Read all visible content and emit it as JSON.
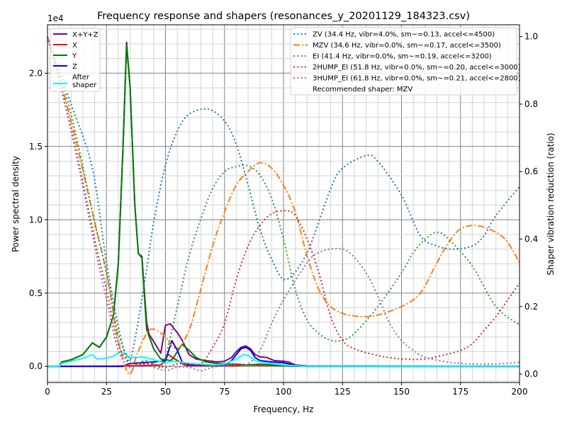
{
  "chart_data": {
    "type": "line",
    "title": "Frequency response and shapers (resonances_y_20201129_184323.csv)",
    "xlabel": "Frequency, Hz",
    "ylabel": "Power spectral density",
    "y2label": "Shaper vibration reduction (ratio)",
    "y_offset_label": "1e4",
    "xlim": [
      0,
      200
    ],
    "ylim": [
      -1100,
      23300
    ],
    "y2lim": [
      -0.025,
      1.035
    ],
    "x_ticks": [
      "0",
      "25",
      "50",
      "75",
      "100",
      "125",
      "150",
      "175",
      "200"
    ],
    "y_ticks": [
      "0.0",
      "0.5",
      "1.0",
      "1.5",
      "2.0"
    ],
    "y2_ticks": [
      "0.0",
      "0.2",
      "0.4",
      "0.6",
      "0.8",
      "1.0"
    ],
    "grid": true,
    "psd_legend_position": "top-left",
    "shaper_legend_position": "top-right",
    "psd_series": [
      {
        "name": "X+Y+Z",
        "color": "#800080",
        "x": [
          0,
          5,
          6,
          10,
          15,
          19,
          22,
          25,
          28,
          30,
          32,
          33.5,
          35,
          37,
          38.5,
          40,
          42,
          43,
          45,
          48,
          50,
          52,
          55,
          57,
          60,
          63,
          67,
          72,
          75,
          78,
          80,
          82,
          84,
          86,
          88,
          90,
          93,
          96,
          100,
          102,
          105,
          110,
          200
        ],
        "y": [
          0,
          0,
          300,
          450,
          800,
          1600,
          1300,
          2000,
          3500,
          7000,
          15000,
          22100,
          19000,
          11000,
          7700,
          7500,
          3000,
          2200,
          1700,
          900,
          2800,
          2900,
          2300,
          1800,
          800,
          500,
          400,
          300,
          350,
          600,
          1000,
          1300,
          1400,
          1200,
          800,
          650,
          600,
          400,
          350,
          300,
          100,
          30,
          0
        ]
      },
      {
        "name": "X",
        "color": "#ff0000",
        "x": [
          0,
          30,
          35,
          40,
          45,
          48,
          50,
          51,
          53,
          55,
          58,
          60,
          70,
          80,
          85,
          90,
          100,
          105,
          200
        ],
        "y": [
          0,
          20,
          50,
          50,
          80,
          100,
          400,
          830,
          600,
          400,
          100,
          50,
          40,
          60,
          100,
          80,
          50,
          10,
          0
        ]
      },
      {
        "name": "Y",
        "color": "#008000",
        "x": [
          0,
          5,
          6,
          10,
          15,
          19,
          22,
          25,
          28,
          30,
          32,
          33.5,
          35,
          37,
          38.5,
          40,
          42,
          45,
          48,
          50,
          52,
          53,
          55,
          57,
          60,
          63,
          67,
          72,
          80,
          85,
          90,
          95,
          100,
          110,
          200
        ],
        "y": [
          0,
          0,
          300,
          450,
          800,
          1600,
          1300,
          2000,
          3500,
          7000,
          15000,
          21900,
          19000,
          11000,
          7700,
          7400,
          2500,
          1200,
          500,
          450,
          400,
          500,
          1000,
          1500,
          1100,
          600,
          300,
          200,
          150,
          100,
          150,
          100,
          50,
          0,
          0
        ]
      },
      {
        "name": "Z",
        "color": "#0000ff",
        "x": [
          0,
          32,
          33,
          35,
          40,
          45,
          48,
          50,
          52.7,
          55,
          57,
          60,
          75,
          78,
          82,
          84,
          86,
          88,
          90,
          95,
          100,
          105,
          110,
          200
        ],
        "y": [
          0,
          0,
          100,
          200,
          250,
          300,
          350,
          400,
          1750,
          1100,
          300,
          100,
          100,
          400,
          1200,
          1300,
          1100,
          600,
          400,
          300,
          250,
          80,
          0,
          0
        ]
      },
      {
        "name": "After\nshaper",
        "color": "#00ffff",
        "x": [
          0,
          5,
          6,
          10,
          15,
          19,
          21,
          25,
          28,
          30,
          31.4,
          35,
          38,
          40,
          43,
          46,
          50,
          53,
          56,
          60,
          70,
          75,
          80,
          83,
          85,
          88,
          92,
          100,
          110,
          200
        ],
        "y": [
          0,
          0,
          200,
          350,
          550,
          800,
          500,
          550,
          700,
          900,
          1000,
          600,
          600,
          650,
          550,
          400,
          250,
          350,
          300,
          200,
          100,
          150,
          500,
          800,
          750,
          400,
          250,
          100,
          0,
          0
        ]
      }
    ],
    "shaper_series": [
      {
        "name": "ZV (34.4 Hz, vibr=4.0%, sm~=0.13, accel<=4500)",
        "color": "#1f77b4",
        "style": "dotted",
        "x": [
          0,
          10,
          19,
          25,
          31,
          34.4,
          37,
          42,
          45,
          50,
          55,
          60,
          68,
          75,
          80,
          85,
          90,
          95,
          101,
          110,
          120,
          125,
          135,
          140,
          150,
          158,
          165,
          172,
          180,
          185,
          190,
          200
        ],
        "y": [
          1.0,
          0.8,
          0.61,
          0.33,
          0.11,
          0.04,
          0.1,
          0.31,
          0.45,
          0.62,
          0.72,
          0.77,
          0.785,
          0.75,
          0.68,
          0.56,
          0.43,
          0.34,
          0.28,
          0.36,
          0.55,
          0.61,
          0.647,
          0.63,
          0.53,
          0.41,
          0.38,
          0.37,
          0.38,
          0.41,
          0.47,
          0.555
        ]
      },
      {
        "name": "MZV (34.6 Hz, vibr=0.0%, sm~=0.17, accel<=3500)",
        "color": "#ff7f0e",
        "style": "dashdot",
        "x": [
          0,
          10,
          20,
          25,
          30,
          34.6,
          38,
          42,
          45,
          50,
          53,
          56,
          60,
          63,
          70,
          75,
          80,
          85,
          90,
          95,
          100,
          105,
          110,
          115,
          120,
          125,
          130,
          135,
          140,
          150,
          158,
          165,
          170,
          175,
          182,
          190,
          195,
          200
        ],
        "y": [
          1.0,
          0.75,
          0.45,
          0.3,
          0.1,
          0.0,
          0.06,
          0.12,
          0.133,
          0.11,
          0.08,
          0.08,
          0.13,
          0.2,
          0.38,
          0.48,
          0.56,
          0.6,
          0.626,
          0.61,
          0.56,
          0.48,
          0.35,
          0.25,
          0.2,
          0.18,
          0.172,
          0.17,
          0.175,
          0.2,
          0.24,
          0.33,
          0.39,
          0.43,
          0.44,
          0.42,
          0.39,
          0.33
        ]
      },
      {
        "name": "EI (41.4 Hz, vibr=0.0%, sm~=0.19, accel<=3200)",
        "color": "#2ca02c",
        "style": "dotted",
        "x": [
          0,
          10,
          20,
          25,
          30,
          35,
          38,
          41.4,
          45,
          48,
          50,
          55,
          60,
          65,
          70,
          75,
          80,
          85,
          90,
          95,
          100,
          105,
          110,
          115,
          120,
          125,
          130,
          140,
          150,
          155,
          160,
          165,
          170,
          180,
          190,
          200
        ],
        "y": [
          1.0,
          0.77,
          0.45,
          0.3,
          0.12,
          0.04,
          0.03,
          0.04,
          0.03,
          0.02,
          0.05,
          0.2,
          0.35,
          0.46,
          0.55,
          0.6,
          0.615,
          0.617,
          0.59,
          0.52,
          0.4,
          0.25,
          0.16,
          0.12,
          0.1,
          0.1,
          0.12,
          0.2,
          0.3,
          0.36,
          0.4,
          0.42,
          0.4,
          0.32,
          0.2,
          0.146
        ]
      },
      {
        "name": "2HUMP_EI (51.8 Hz, vibr=0.0%, sm~=0.20, accel<=3000)",
        "color": "#d62728",
        "style": "dotted",
        "x": [
          0,
          10,
          20,
          25,
          30,
          35,
          40,
          45,
          50,
          55,
          60,
          65,
          70,
          75,
          80,
          85,
          90,
          95,
          101,
          105,
          110,
          115,
          120,
          125,
          130,
          140,
          150,
          160,
          170,
          175,
          180,
          185,
          190,
          195,
          200
        ],
        "y": [
          1.0,
          0.73,
          0.4,
          0.25,
          0.09,
          0.03,
          0.03,
          0.03,
          0.02,
          0.03,
          0.03,
          0.03,
          0.08,
          0.15,
          0.28,
          0.38,
          0.44,
          0.475,
          0.484,
          0.47,
          0.4,
          0.3,
          0.17,
          0.1,
          0.075,
          0.055,
          0.045,
          0.045,
          0.06,
          0.07,
          0.09,
          0.13,
          0.17,
          0.22,
          0.27
        ]
      },
      {
        "name": "3HUMP_EI (61.8 Hz, vibr=0.0%, sm~=0.21, accel<=2800)",
        "color": "#9467bd",
        "style": "dotted",
        "x": [
          0,
          10,
          20,
          25,
          30,
          35,
          40,
          45,
          50,
          55,
          60,
          65,
          70,
          80,
          85,
          90,
          95,
          100,
          110,
          115,
          122,
          128,
          135,
          140,
          145,
          150,
          155,
          160,
          170,
          180,
          190,
          200
        ],
        "y": [
          1.0,
          0.72,
          0.38,
          0.22,
          0.07,
          0.02,
          0.03,
          0.02,
          0.01,
          0.02,
          0.02,
          0.01,
          0.02,
          0.03,
          0.03,
          0.07,
          0.15,
          0.22,
          0.33,
          0.36,
          0.372,
          0.36,
          0.3,
          0.23,
          0.15,
          0.1,
          0.07,
          0.05,
          0.035,
          0.03,
          0.03,
          0.035
        ]
      }
    ],
    "recommendation": "Recommended shaper: MZV"
  }
}
